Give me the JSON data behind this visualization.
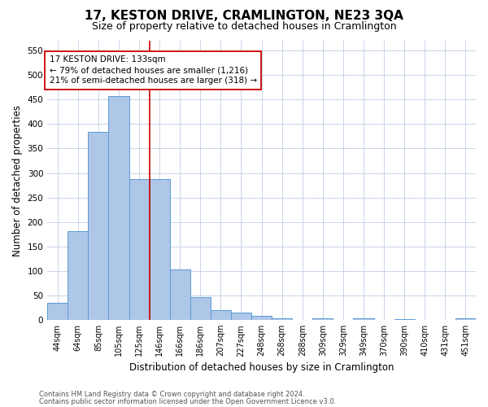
{
  "title": "17, KESTON DRIVE, CRAMLINGTON, NE23 3QA",
  "subtitle": "Size of property relative to detached houses in Cramlington",
  "xlabel": "Distribution of detached houses by size in Cramlington",
  "ylabel": "Number of detached properties",
  "footer_line1": "Contains HM Land Registry data © Crown copyright and database right 2024.",
  "footer_line2": "Contains public sector information licensed under the Open Government Licence v3.0.",
  "categories": [
    "44sqm",
    "64sqm",
    "85sqm",
    "105sqm",
    "125sqm",
    "146sqm",
    "166sqm",
    "186sqm",
    "207sqm",
    "227sqm",
    "248sqm",
    "268sqm",
    "288sqm",
    "309sqm",
    "329sqm",
    "349sqm",
    "370sqm",
    "390sqm",
    "410sqm",
    "431sqm",
    "451sqm"
  ],
  "values": [
    35,
    181,
    384,
    457,
    288,
    288,
    104,
    47,
    20,
    15,
    9,
    3,
    0,
    4,
    0,
    3,
    0,
    2,
    0,
    0,
    3
  ],
  "bar_color": "#aec6e8",
  "bar_edge_color": "#5b9bd5",
  "vline_color": "#cc0000",
  "vline_x": 4.5,
  "annotation_line1": "17 KESTON DRIVE: 133sqm",
  "annotation_line2": "← 79% of detached houses are smaller (1,216)",
  "annotation_line3": "21% of semi-detached houses are larger (318) →",
  "ylim_max": 570,
  "yticks": [
    0,
    50,
    100,
    150,
    200,
    250,
    300,
    350,
    400,
    450,
    500,
    550
  ],
  "grid_color": "#c8d4e8",
  "title_fontsize": 11,
  "subtitle_fontsize": 9,
  "tick_fontsize": 7,
  "ylabel_fontsize": 8.5,
  "xlabel_fontsize": 8.5,
  "annotation_fontsize": 7.5,
  "footer_fontsize": 6
}
